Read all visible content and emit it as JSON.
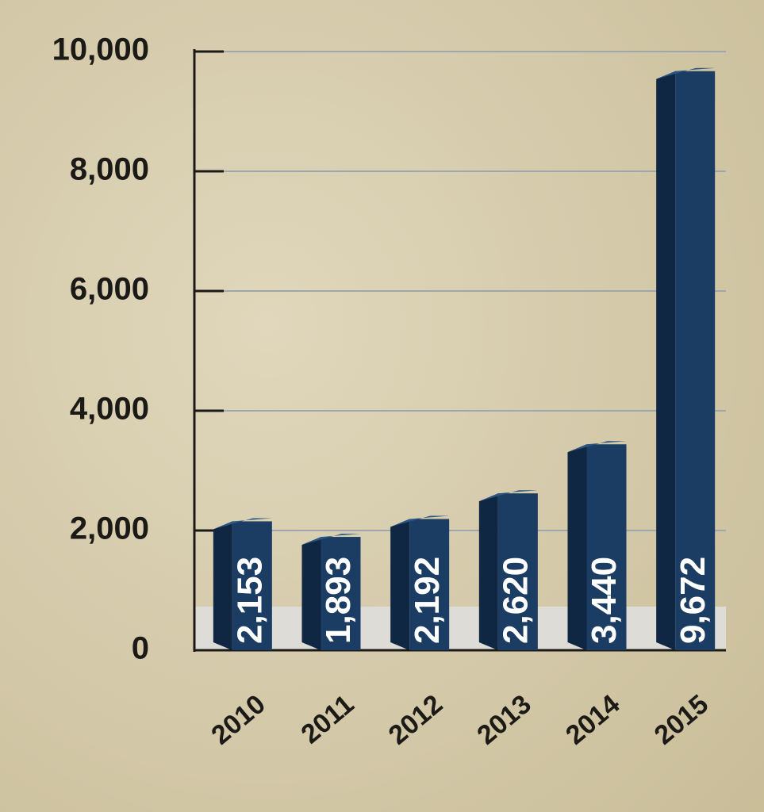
{
  "chart_data": {
    "type": "bar",
    "categories": [
      "2010",
      "2011",
      "2012",
      "2013",
      "2014",
      "2015"
    ],
    "values": [
      2153,
      1893,
      2192,
      2620,
      3440,
      9672
    ],
    "value_labels": [
      "2,153",
      "1,893",
      "2,192",
      "2,620",
      "3,440",
      "9,672"
    ],
    "color": "#1b3d63",
    "ylim": [
      0,
      10000
    ],
    "yticks": [
      0,
      {
        "value": 2000,
        "label": "2,000"
      },
      {
        "value": 4000,
        "label": "4,000"
      },
      {
        "value": 6000,
        "label": "6,000"
      },
      {
        "value": 8000,
        "label": "8,000"
      },
      {
        "value": 10000,
        "label": "10,000"
      }
    ],
    "grid": true
  }
}
